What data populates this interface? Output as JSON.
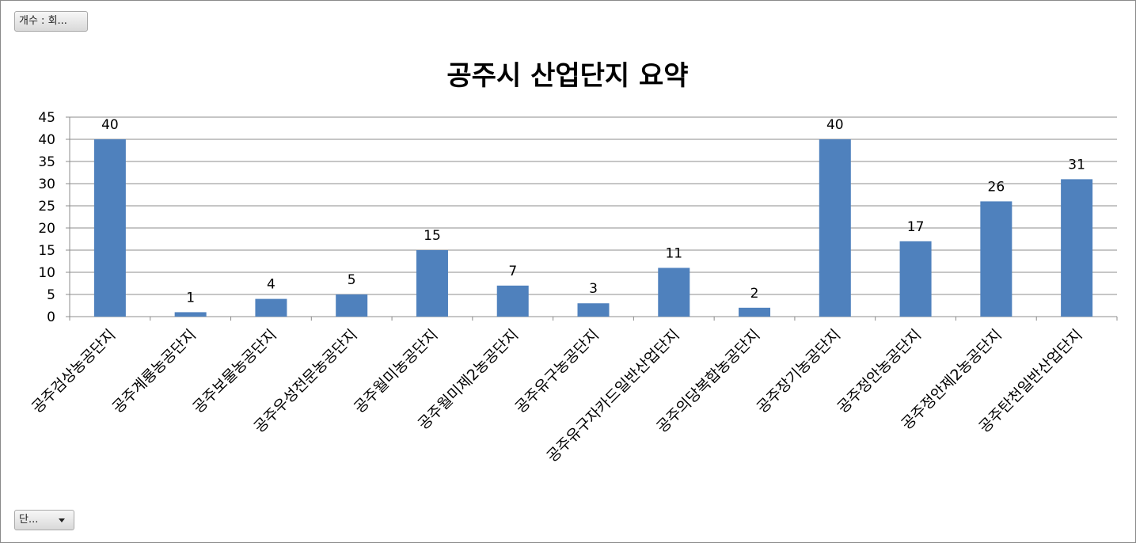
{
  "controls": {
    "value_field_label": "개수 : 회...",
    "axis_field_label": "단..."
  },
  "chart_data": {
    "type": "bar",
    "title": "공주시 산업단지 요약",
    "xlabel": "",
    "ylabel": "",
    "ylim": [
      0,
      45
    ],
    "y_ticks": [
      0,
      5,
      10,
      15,
      20,
      25,
      30,
      35,
      40,
      45
    ],
    "grid": true,
    "legend": "none",
    "bar_color": "#4f81bd",
    "categories": [
      "공주검상농공단지",
      "공주계룡농공단지",
      "공주보물농공단지",
      "공주우성전문농공단지",
      "공주월미농공단지",
      "공주월미제2농공단지",
      "공주유구농공단지",
      "공주유구자카드일반산업단지",
      "공주의당복합농공단지",
      "공주장기농공단지",
      "공주정안농공단지",
      "공주정안제2농공단지",
      "공주탄천일반산업단지"
    ],
    "values": [
      40,
      1,
      4,
      5,
      15,
      7,
      3,
      11,
      2,
      40,
      17,
      26,
      31
    ]
  }
}
